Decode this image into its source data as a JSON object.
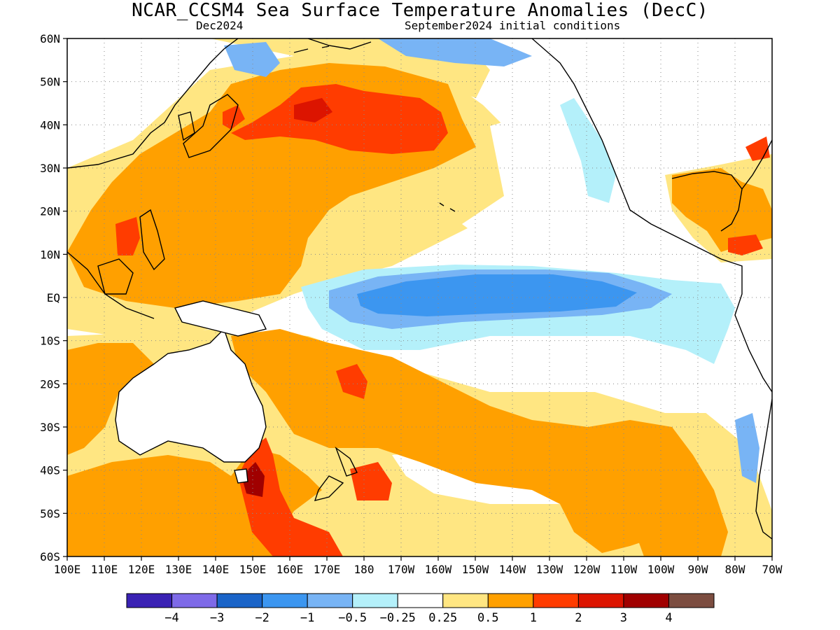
{
  "title": "NCAR_CCSM4 Sea Surface Temperature Anomalies (DecC)",
  "subtitle_left": "Dec2024",
  "subtitle_right": "September2024 initial conditions",
  "map": {
    "lat_ticks": [
      "60N",
      "50N",
      "40N",
      "30N",
      "20N",
      "10N",
      "EQ",
      "10S",
      "20S",
      "30S",
      "40S",
      "50S",
      "60S"
    ],
    "lon_ticks": [
      "100E",
      "110E",
      "120E",
      "130E",
      "140E",
      "150E",
      "160E",
      "170E",
      "180",
      "170W",
      "160W",
      "150W",
      "140W",
      "130W",
      "120W",
      "110W",
      "100W",
      "90W",
      "80W",
      "70W"
    ],
    "gridlines": "dotted"
  },
  "legend": {
    "colors": [
      "#3a22b4",
      "#7e6ae8",
      "#1a64c8",
      "#3c96f0",
      "#78b4f5",
      "#b4f0fa",
      "#ffffff",
      "#ffe682",
      "#ffa000",
      "#ff3c00",
      "#dc1400",
      "#a00000",
      "#7c4d40"
    ],
    "labels": [
      "-4",
      "-3",
      "-2",
      "-1",
      "-0.5",
      "-0.25",
      "0.25",
      "0.5",
      "1",
      "2",
      "3",
      "4"
    ]
  },
  "palette": {
    "ocean_neutral": "#ffffff",
    "warm_light": "#ffe682",
    "warm": "#ffa000",
    "hot": "#ff3c00",
    "hotter": "#dc1400",
    "hottest": "#a00000",
    "cool_light": "#b4f0fa",
    "cool": "#78b4f5",
    "cooler": "#3c96f0",
    "land_fill": "#ffffff",
    "coast": "#000000"
  }
}
